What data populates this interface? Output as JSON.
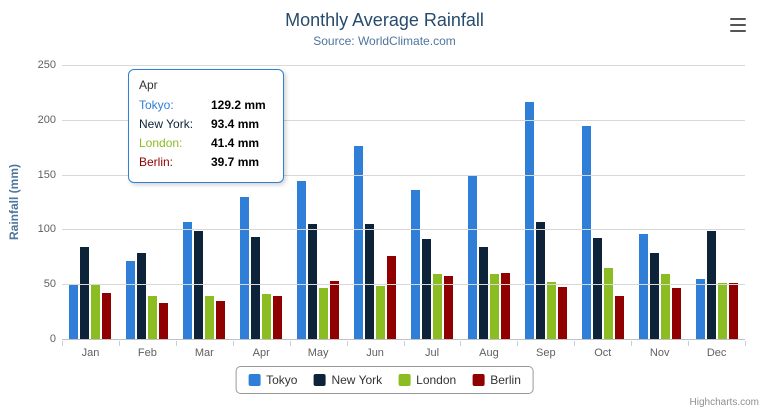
{
  "chart": {
    "title": "Monthly Average Rainfall",
    "subtitle": "Source: WorldClimate.com",
    "ylabel": "Rainfall (mm)",
    "credits": "Highcharts.com"
  },
  "chart_data": {
    "type": "bar",
    "title": "Monthly Average Rainfall",
    "subtitle": "Source: WorldClimate.com",
    "xlabel": "",
    "ylabel": "Rainfall (mm)",
    "ylim": [
      0,
      250
    ],
    "yticks": [
      0,
      50,
      100,
      150,
      200,
      250
    ],
    "grid": true,
    "legend_position": "bottom",
    "categories": [
      "Jan",
      "Feb",
      "Mar",
      "Apr",
      "May",
      "Jun",
      "Jul",
      "Aug",
      "Sep",
      "Oct",
      "Nov",
      "Dec"
    ],
    "series": [
      {
        "name": "Tokyo",
        "color": "#2f7ed8",
        "values": [
          49.9,
          71.5,
          106.4,
          129.2,
          144.0,
          176.0,
          135.6,
          148.5,
          216.4,
          194.1,
          95.6,
          54.4
        ]
      },
      {
        "name": "New York",
        "color": "#0d233a",
        "values": [
          83.6,
          78.8,
          98.5,
          93.4,
          105.0,
          104.5,
          91.2,
          83.5,
          106.6,
          92.3,
          78.9,
          99.0
        ]
      },
      {
        "name": "London",
        "color": "#8bbc21",
        "values": [
          48.9,
          38.8,
          39.3,
          41.4,
          47.0,
          48.3,
          59.0,
          59.6,
          52.4,
          65.2,
          59.3,
          51.2
        ]
      },
      {
        "name": "Berlin",
        "color": "#910000",
        "values": [
          42.4,
          33.2,
          34.5,
          39.7,
          52.6,
          75.5,
          57.4,
          60.4,
          47.6,
          39.1,
          46.8,
          51.1
        ]
      }
    ]
  },
  "tooltip": {
    "header": "Apr",
    "rows": [
      {
        "name": "Tokyo",
        "value": "129.2 mm",
        "color": "#2f7ed8"
      },
      {
        "name": "New York",
        "value": "93.4 mm",
        "color": "#0d233a"
      },
      {
        "name": "London",
        "value": "41.4 mm",
        "color": "#8bbc21"
      },
      {
        "name": "Berlin",
        "value": "39.7 mm",
        "color": "#910000"
      }
    ]
  }
}
